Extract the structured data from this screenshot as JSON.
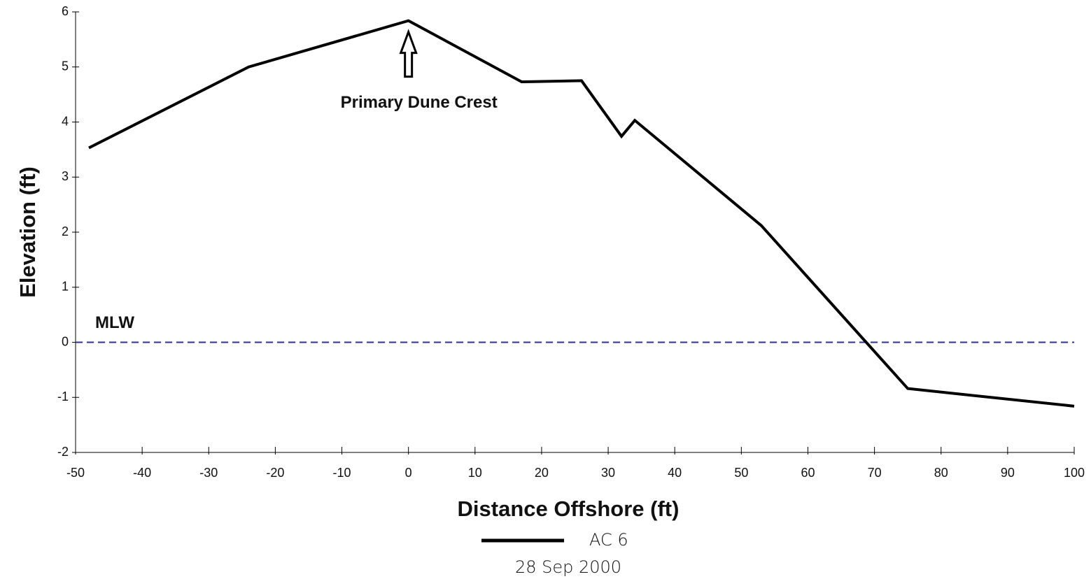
{
  "chart_data": {
    "type": "line",
    "xlabel": "Distance Offshore (ft)",
    "ylabel": "Elevation (ft)",
    "subtitle": "28 Sep 2000",
    "x": [
      -48,
      -24,
      0,
      17,
      26,
      32,
      34,
      53,
      75,
      100
    ],
    "series": [
      {
        "name": "AC 6",
        "color": "#000000",
        "values": [
          3.53,
          5.0,
          5.84,
          4.73,
          4.75,
          3.74,
          4.03,
          2.12,
          -0.84,
          -1.16
        ]
      }
    ],
    "xlim": [
      -50,
      100
    ],
    "ylim": [
      -2,
      6
    ],
    "xticks": [
      -50,
      -40,
      -30,
      -20,
      -10,
      0,
      10,
      20,
      30,
      40,
      50,
      60,
      70,
      80,
      90,
      100
    ],
    "yticks": [
      -2,
      -1,
      0,
      1,
      2,
      3,
      4,
      5,
      6
    ],
    "reference_line": {
      "label": "MLW",
      "value": 0,
      "color": "#2e3192"
    },
    "annotation": {
      "text": "Primary Dune Crest",
      "x": 0
    }
  }
}
